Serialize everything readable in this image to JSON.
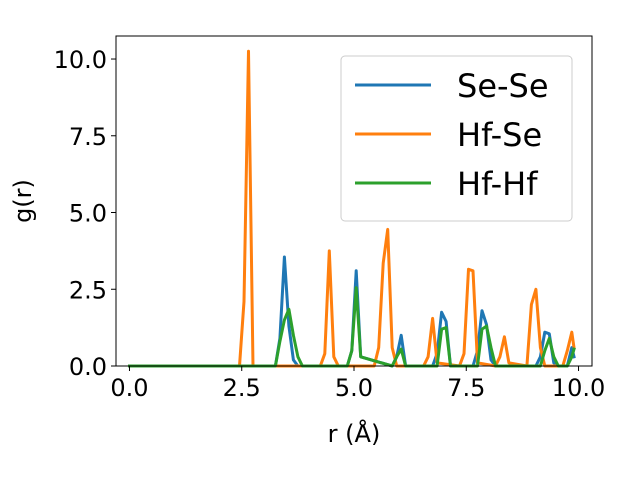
{
  "chart_data": {
    "type": "line",
    "xlabel": "r (Å)",
    "ylabel": "g(r)",
    "xlim": [
      -0.3,
      10.3
    ],
    "ylim": [
      0,
      10.75
    ],
    "xticks": [
      0.0,
      2.5,
      5.0,
      7.5,
      10.0
    ],
    "xtick_labels": [
      "0.0",
      "2.5",
      "5.0",
      "7.5",
      "10.0"
    ],
    "yticks": [
      0.0,
      2.5,
      5.0,
      7.5,
      10.0
    ],
    "ytick_labels": [
      "0.0",
      "2.5",
      "5.0",
      "7.5",
      "10.0"
    ],
    "grid": false,
    "legend_position": "top-right",
    "series": [
      {
        "name": "Se-Se",
        "color": "#1f77b4",
        "x": [
          0.0,
          3.25,
          3.35,
          3.45,
          3.55,
          3.65,
          3.75,
          4.85,
          4.95,
          5.05,
          5.15,
          5.85,
          5.95,
          6.05,
          6.15,
          6.75,
          6.85,
          6.95,
          7.05,
          7.15,
          7.65,
          7.75,
          7.85,
          7.95,
          8.05,
          8.15,
          9.05,
          9.15,
          9.25,
          9.35,
          9.45,
          9.55,
          9.75,
          9.85,
          9.9
        ],
        "y": [
          0.0,
          0.0,
          0.9,
          3.55,
          1.3,
          0.2,
          0.0,
          0.0,
          0.5,
          3.1,
          0.3,
          0.0,
          0.3,
          1.0,
          0.0,
          0.0,
          0.4,
          1.75,
          1.45,
          0.0,
          0.0,
          0.5,
          1.8,
          1.35,
          0.2,
          0.0,
          0.0,
          0.3,
          1.1,
          1.05,
          0.1,
          0.0,
          0.0,
          0.6,
          0.3
        ]
      },
      {
        "name": "Hf-Se",
        "color": "#ff7f0e",
        "x": [
          0.0,
          2.45,
          2.55,
          2.65,
          2.75,
          2.85,
          4.25,
          4.35,
          4.45,
          4.55,
          4.65,
          5.45,
          5.55,
          5.65,
          5.75,
          5.85,
          5.95,
          6.55,
          6.65,
          6.75,
          6.85,
          7.35,
          7.45,
          7.55,
          7.65,
          7.75,
          8.15,
          8.25,
          8.35,
          8.45,
          8.85,
          8.95,
          9.05,
          9.15,
          9.25,
          9.65,
          9.75,
          9.85,
          9.9
        ],
        "y": [
          0.0,
          0.0,
          2.1,
          10.25,
          0.0,
          0.0,
          0.0,
          0.4,
          3.75,
          0.3,
          0.0,
          0.0,
          0.6,
          3.35,
          4.45,
          0.6,
          0.0,
          0.0,
          0.3,
          1.55,
          0.1,
          0.0,
          0.4,
          3.15,
          3.1,
          0.1,
          0.0,
          0.3,
          0.95,
          0.1,
          0.0,
          2.0,
          2.5,
          0.6,
          0.0,
          0.0,
          0.5,
          1.1,
          0.6
        ]
      },
      {
        "name": "Hf-Hf",
        "color": "#2ca02c",
        "x": [
          0.0,
          3.25,
          3.35,
          3.45,
          3.55,
          3.65,
          3.75,
          3.85,
          4.85,
          4.95,
          5.05,
          5.15,
          5.85,
          5.95,
          6.05,
          6.15,
          6.85,
          6.95,
          7.05,
          7.15,
          7.75,
          7.85,
          7.95,
          8.05,
          8.15,
          9.15,
          9.25,
          9.35,
          9.45,
          9.55,
          9.75,
          9.85,
          9.9
        ],
        "y": [
          0.0,
          0.0,
          0.8,
          1.5,
          1.85,
          1.0,
          0.3,
          0.0,
          0.0,
          0.5,
          2.55,
          0.3,
          0.0,
          0.3,
          0.55,
          0.0,
          0.0,
          1.2,
          1.25,
          0.0,
          0.0,
          1.2,
          1.3,
          0.6,
          0.0,
          0.0,
          0.5,
          0.9,
          0.3,
          0.0,
          0.0,
          0.3,
          0.55
        ]
      }
    ]
  }
}
